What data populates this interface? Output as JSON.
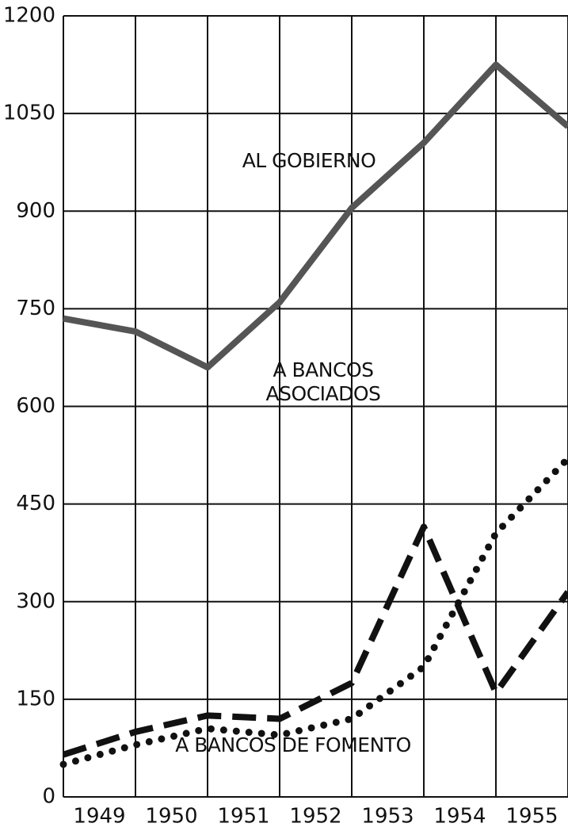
{
  "chart_data": {
    "type": "line",
    "x": [
      1948.5,
      1949.5,
      1950.5,
      1951.5,
      1952.5,
      1953.5,
      1954.5,
      1955.5
    ],
    "xlim": [
      1948.5,
      1955.5
    ],
    "xticks": [
      1949,
      1950,
      1951,
      1952,
      1953,
      1954,
      1955
    ],
    "ylim": [
      0,
      1200
    ],
    "yticks": [
      0,
      150,
      300,
      450,
      600,
      750,
      900,
      1050,
      1200
    ],
    "grid": true,
    "series": [
      {
        "name": "AL GOBIERNO",
        "color": "#555555",
        "style": "solid",
        "values": [
          735,
          715,
          660,
          760,
          905,
          1005,
          1125,
          1030
        ]
      },
      {
        "name": "A BANCOS ASOCIADOS",
        "color": "#111111",
        "style": "dashed",
        "values": [
          65,
          100,
          125,
          120,
          175,
          415,
          160,
          315
        ]
      },
      {
        "name": "A BANCOS DE FOMENTO",
        "color": "#111111",
        "style": "dotted",
        "values": [
          50,
          80,
          105,
          95,
          120,
          200,
          405,
          520
        ]
      }
    ]
  }
}
